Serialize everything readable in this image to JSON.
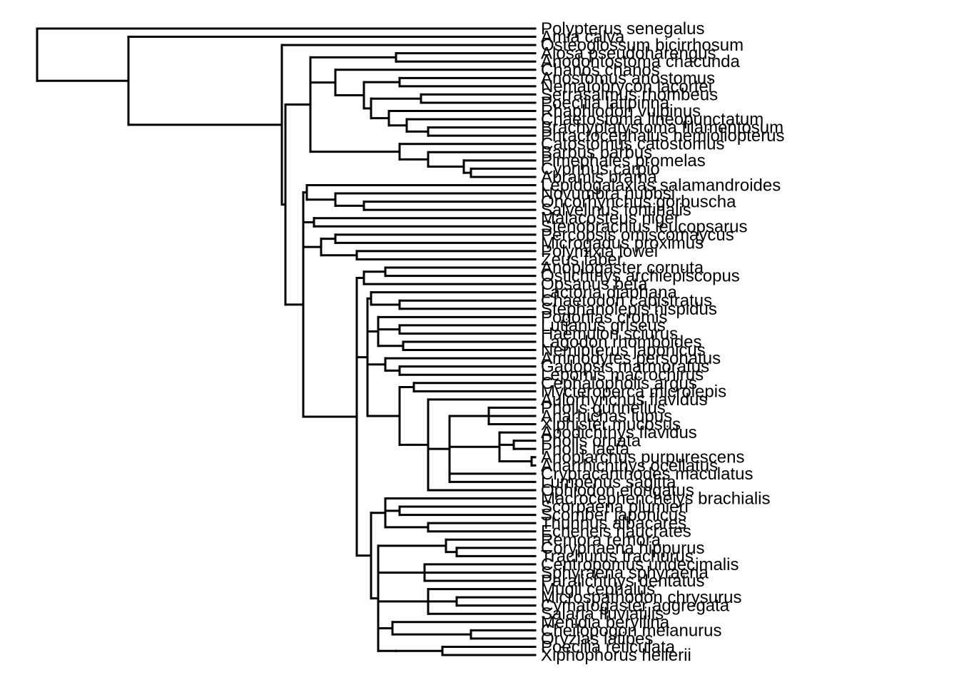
{
  "tree": {
    "tips": [
      "Polypterus senegalus",
      "Amia calva",
      "Osteoglossum bicirrhosum",
      "Alosa pseudoharengus",
      "Anodontostoma chacunda",
      "Chanos chanos",
      "Anostomus anostomus",
      "Nematobrycon lacortei",
      "Serrasalmus rhombeus",
      "Poecilia latipinna",
      "Rhaphiodon vulpinus",
      "Chaetostoma lineopunctatum",
      "Brachyplatystoma filamentosum",
      "Phractocephalus hemioliopterus",
      "Catostomus catostomus",
      "Barbus barbus",
      "Pimephales promelas",
      "Cyprinus carpio",
      "Abramis brama",
      "Lepidogalaxias salamandroides",
      "Novumbra hubbsi",
      "Oncorhynchus gorbuscha",
      "Salvelinus fontinalis",
      "Malacosteus niger",
      "Stenobrachius leucopsarus",
      "Percopsis omiscomaycus",
      "Microgadus proximus",
      "Polymixia lowei",
      "Zeus faber",
      "Anoplogaster cornuta",
      "Ostichthys archiepiscopus",
      "Opsanus beta",
      "Lactoria diaphana",
      "Chaetodon capistratus",
      "Stephanolepis hispidus",
      "Pogonias cromis",
      "Lutjanus griseus",
      "Haemulon sciurus",
      "Lagodon rhomboides",
      "Nemipterus japonicus",
      "Ammodytes personatus",
      "Gadopsis marmoratus",
      "Lepomis macrochirus",
      "Cephalopholis argus",
      "Mycteroperca microlepis",
      "Aulorhynchus flavidus",
      "Pholis gunnellus",
      "Anarhichas lupus",
      "Xiphister mucosus",
      "Apodichthys flavidus",
      "Pholis ornata",
      "Pholis laeta",
      "Anoplarchus purpurescens",
      "Anarrhichthys ocellatus",
      "Cryptacanthodes maculatus",
      "Lumpenus sagitta",
      "Ophiodon elongatus",
      "Macrocephenchelys brachialis",
      "Scorpaena plumieri",
      "Scomber japonicus",
      "Thunnus albacares",
      "Echeneis naucrates",
      "Remora remora",
      "Coryphaena hippurus",
      "Trachurus trachurus",
      "Centropomus undecimalis",
      "Sphyraena sphyraena",
      "Paralichthys dentatus",
      "Mugil cephalus",
      "Microspathodon chrysurus",
      "Cymatogaster aggregata",
      "Salaria fluviatilis",
      "Menidia beryllina",
      "Cheilopogon melanurus",
      "Oryzias latipes",
      "Poecilia reticulata",
      "Xiphophorus hellerii"
    ],
    "visible_labels": [
      "Polypterus senegalus",
      "Amia calva",
      "Osteoglossum bicirrhosum",
      "Alosa pseudoharengus",
      "Anodontostoma chacunda",
      "Chanos chanos",
      "Anostomus anostomus",
      "Serrasalmus rhombeus",
      "Poecilia latipinna",
      "Chaetostoma lineopunctatum",
      "Catostomus catostomus",
      "Barbus barbus",
      "Cyprinus carpio",
      "Abramis brama",
      "Pimephales promelas",
      "Lepidogalaxias salamandroides",
      "Novumbra hubbsi",
      "Oncorhynchus gorbuscha",
      "Malacosteus niger",
      "Stenobrachius leucopsarus",
      "Percopsis omiscomaycus",
      "Microgadus proximus",
      "Polymixia lowei",
      "Anoplogaster cornuta",
      "Opsanus beta",
      "Lactoria diaphana",
      "Chaetodon capistratus",
      "Pogonias cromis",
      "Lagodon rhomboides",
      "Ammodytes personatus",
      "Gadopsis marmoratus",
      "Aulorhynchus flavidus",
      "Apodichthys flavidus",
      "Anoplarchus purpurescens",
      "Lumpenus sagitta",
      "Ophiodon elongatus",
      "Scorpaena plumieri",
      "Scomber japonicus",
      "Remora remora",
      "Coryphaena hippurus",
      "Trachurus trachurus",
      "Centropomus undecimalis",
      "Sphyraena sphyraena",
      "Mugil cephalus",
      "Cymatogaster aggregata",
      "Menidia beryllina",
      "Cheilopogon melanurus",
      "Poecilia reticulata",
      "Xiphophorus hellerii"
    ],
    "line_color": "#000000",
    "label_color": "#000000"
  }
}
